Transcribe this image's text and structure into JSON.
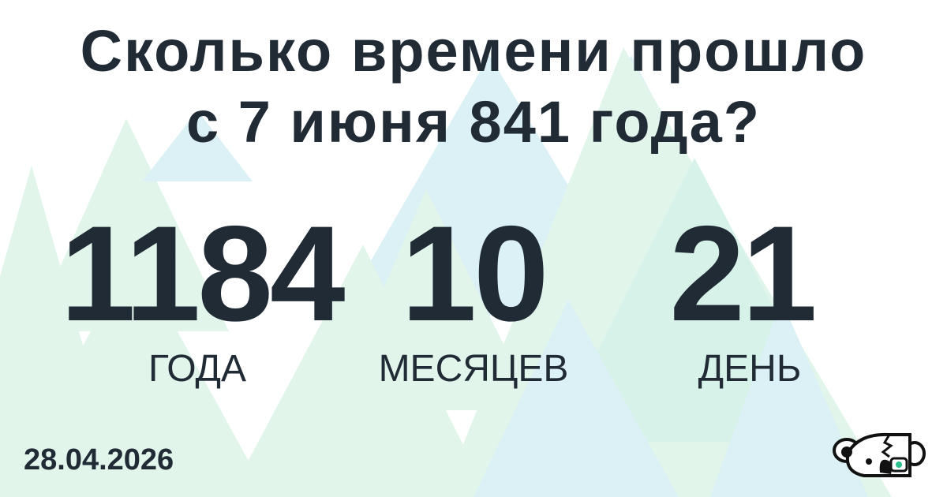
{
  "title": {
    "line1": "Сколько времени прошло",
    "line2": "с 7 июня 841 года?"
  },
  "result": [
    {
      "value": "1184",
      "unit": "ГОДА"
    },
    {
      "value": "10",
      "unit": "МЕСЯЦЕВ"
    },
    {
      "value": "21",
      "unit": "ДЕНЬ"
    }
  ],
  "date": "28.04.2026",
  "logo": "koala-robot-logo",
  "colors": {
    "text": "#212b36",
    "triangle_green": "#bfe8d3",
    "triangle_blue": "#c4e9ee",
    "accent": "#2bbf8a"
  }
}
